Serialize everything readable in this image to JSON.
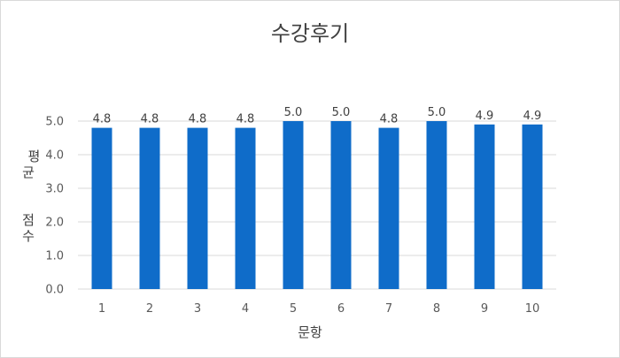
{
  "chart_data": {
    "type": "bar",
    "title": "수강후기",
    "xlabel": "문항",
    "ylabel": "평균 점수",
    "categories": [
      "1",
      "2",
      "3",
      "4",
      "5",
      "6",
      "7",
      "8",
      "9",
      "10"
    ],
    "values": [
      4.8,
      4.8,
      4.8,
      4.8,
      5.0,
      5.0,
      4.8,
      5.0,
      4.9,
      4.9
    ],
    "value_labels": [
      "4.8",
      "4.8",
      "4.8",
      "4.8",
      "5.0",
      "5.0",
      "4.8",
      "5.0",
      "4.9",
      "4.9"
    ],
    "yticks": [
      "0.0",
      "1.0",
      "2.0",
      "3.0",
      "4.0",
      "5.0"
    ],
    "ylim": [
      0,
      5
    ],
    "grid": true,
    "legend": "none",
    "bar_color": "#0f6cc9",
    "grid_color": "#d9d9d9"
  }
}
